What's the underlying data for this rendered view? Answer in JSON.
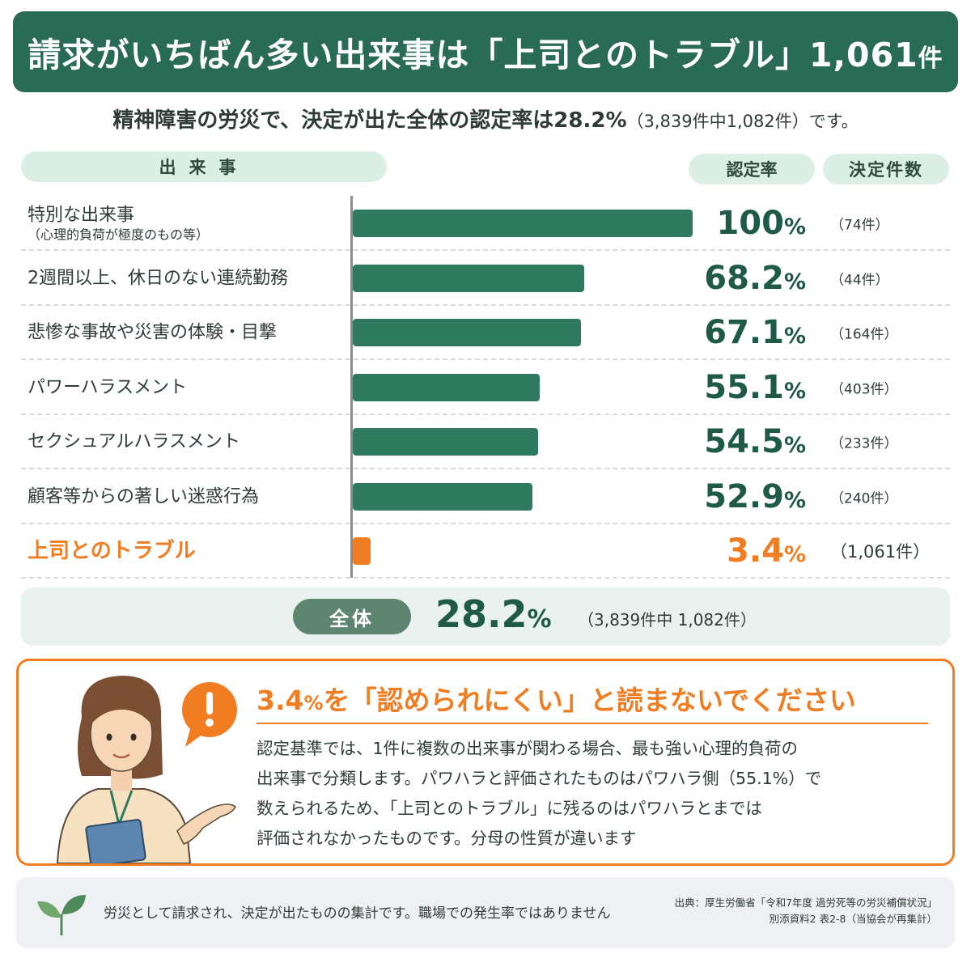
{
  "header": {
    "title_main": "請求がいちばん多い出来事は「上司とのトラブル」1,061",
    "title_suffix": "件",
    "subtitle_main": "精神障害の労災で、決定が出た全体の認定率は28.2%",
    "subtitle_paren": "（3,839件中1,082件）です。"
  },
  "columns": {
    "event": "出来事",
    "rate": "認定率",
    "count": "決定件数"
  },
  "chart_data": {
    "type": "bar",
    "orientation": "horizontal",
    "categories": [
      "特別な出来事（心理的負荷が極度のもの等）",
      "2週間以上、休日のない連続勤務",
      "悲惨な事故や災害の体験・目撃",
      "パワーハラスメント",
      "セクシュアルハラスメント",
      "顧客等からの著しい迷惑行為",
      "上司とのトラブル"
    ],
    "values": [
      100,
      68.2,
      67.1,
      55.1,
      54.5,
      52.9,
      3.4
    ],
    "xlim": [
      0,
      100
    ],
    "unit": "%",
    "highlight_index": 6,
    "colors": {
      "bar": "#2f7a5e",
      "highlight": "#f07d22"
    },
    "rows": [
      {
        "label": "特別な出来事",
        "sublabel": "（心理的負荷が極度のもの等）",
        "value": 100,
        "rate": "100",
        "pct": "%",
        "count": "（74件）"
      },
      {
        "label": "2週間以上、休日のない連続勤務",
        "sublabel": "",
        "value": 68.2,
        "rate": "68.2",
        "pct": "%",
        "count": "（44件）"
      },
      {
        "label": "悲惨な事故や災害の体験・目撃",
        "sublabel": "",
        "value": 67.1,
        "rate": "67.1",
        "pct": "%",
        "count": "（164件）"
      },
      {
        "label": "パワーハラスメント",
        "sublabel": "",
        "value": 55.1,
        "rate": "55.1",
        "pct": "%",
        "count": "（403件）"
      },
      {
        "label": "セクシュアルハラスメント",
        "sublabel": "",
        "value": 54.5,
        "rate": "54.5",
        "pct": "%",
        "count": "（233件）"
      },
      {
        "label": "顧客等からの著しい迷惑行為",
        "sublabel": "",
        "value": 52.9,
        "rate": "52.9",
        "pct": "%",
        "count": "（240件）"
      },
      {
        "label": "上司とのトラブル",
        "sublabel": "",
        "value": 3.4,
        "rate": "3.4",
        "pct": "%",
        "count": "（1,061件）"
      }
    ]
  },
  "total": {
    "label": "全体",
    "rate": "28.2",
    "pct": "%",
    "detail": "（3,839件中 1,082件）"
  },
  "note": {
    "title_num": "3.4",
    "title_pct": "%",
    "title_rest": "を「認められにくい」と読まないでください",
    "lines": [
      "認定基準では、1件に複数の出来事が関わる場合、最も強い心理的負荷の",
      "出来事で分類します。パワハラと評価されたものはパワハラ側（55.1%）で",
      "数えられるため、「上司とのトラブル」に残るのはパワハラとまでは",
      "評価されなかったものです。分母の性質が違います"
    ],
    "icon": "exclamation-icon",
    "accent": "#f07d22"
  },
  "footer": {
    "text": "労災として請求され、決定が出たものの集計です。職場での発生率ではありません",
    "source_line1": "出典：厚生労働省「令和7年度 過労死等の労災補償状況」",
    "source_line2": "別添資料2 表2-8（当協会が再集計）",
    "icon": "sprout-icon"
  },
  "colors": {
    "brand": "#2a6b55",
    "bar": "#2f7a5e",
    "accent": "#f07d22",
    "pill": "#dcefe4"
  }
}
